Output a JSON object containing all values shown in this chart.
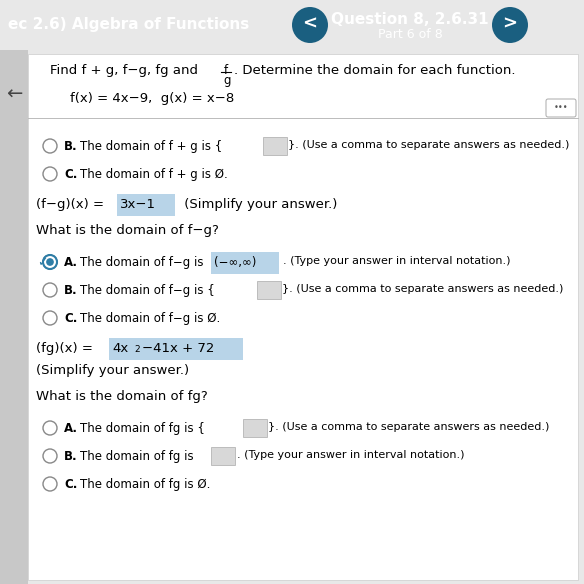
{
  "header_bg": "#2e7da6",
  "header_text": "ec 2.6) Algebra of Functions",
  "question_label": "Question 8, 2.6.31",
  "part_label": "Part 6 of 8",
  "body_bg": "#e8e8e8",
  "content_bg": "#f0f0f0",
  "radio_color_filled": "#2e7da6",
  "nav_circle_color": "#1a5f80",
  "highlight_color": "#b8d4e8"
}
